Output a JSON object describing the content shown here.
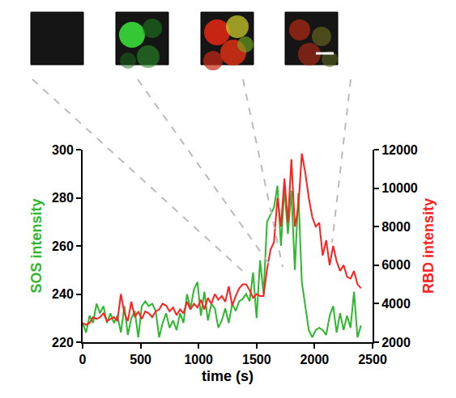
{
  "chart_data": {
    "type": "line",
    "x": [
      0,
      30,
      60,
      90,
      120,
      150,
      180,
      210,
      240,
      270,
      300,
      330,
      360,
      390,
      420,
      450,
      480,
      510,
      540,
      570,
      600,
      630,
      660,
      690,
      720,
      750,
      780,
      810,
      840,
      870,
      900,
      930,
      960,
      990,
      1020,
      1050,
      1080,
      1110,
      1140,
      1170,
      1200,
      1230,
      1260,
      1290,
      1320,
      1350,
      1380,
      1410,
      1440,
      1470,
      1500,
      1530,
      1560,
      1590,
      1620,
      1650,
      1680,
      1710,
      1740,
      1770,
      1800,
      1830,
      1860,
      1890,
      1920,
      1950,
      1980,
      2010,
      2040,
      2070,
      2100,
      2130,
      2160,
      2190,
      2220,
      2250,
      2280,
      2310,
      2340,
      2370,
      2400
    ],
    "xlabel": "time (s)",
    "xlim": [
      0,
      2500
    ],
    "xticks": [
      0,
      500,
      1000,
      1500,
      2000,
      2500
    ],
    "ylim": [
      220,
      300
    ],
    "yticks": [
      220,
      240,
      260,
      280,
      300
    ],
    "y2lim": [
      2000,
      12000
    ],
    "y2ticks": [
      2000,
      4000,
      6000,
      8000,
      10000,
      12000
    ],
    "grid": false,
    "series": [
      {
        "name": "SOS intensity",
        "color": "#2fb82f",
        "axis": "y",
        "values": [
          228,
          224,
          231,
          228,
          236,
          232,
          235,
          228,
          232,
          228,
          231,
          224,
          235,
          223,
          230,
          233,
          222,
          235,
          237,
          235,
          236,
          233,
          222,
          228,
          232,
          226,
          229,
          225,
          232,
          228,
          240,
          234,
          242,
          245,
          231,
          241,
          229,
          236,
          234,
          226,
          229,
          234,
          228,
          236,
          233,
          237,
          238,
          240,
          237,
          249,
          230,
          254,
          240,
          270,
          273,
          276,
          285,
          260,
          284,
          265,
          283,
          250,
          282,
          245,
          235,
          225,
          222,
          225,
          226,
          225,
          223,
          231,
          235,
          224,
          232,
          225,
          231,
          226,
          241,
          222,
          227
        ]
      },
      {
        "name": "RBD intensity",
        "color": "#ff2020",
        "axis": "y2",
        "values": [
          3000,
          2900,
          3000,
          3300,
          3200,
          3300,
          3500,
          3100,
          3200,
          3300,
          3100,
          4500,
          3500,
          3100,
          4100,
          3300,
          3600,
          3200,
          3600,
          3500,
          3300,
          3600,
          3700,
          4000,
          3900,
          3600,
          3800,
          3400,
          3700,
          3500,
          4100,
          3700,
          4000,
          3800,
          4200,
          3700,
          4300,
          4000,
          4500,
          4200,
          4400,
          4100,
          4900,
          3900,
          4400,
          4800,
          5000,
          5000,
          4700,
          4300,
          4500,
          4400,
          4400,
          5800,
          6800,
          7200,
          9500,
          8000,
          10500,
          8200,
          11500,
          8000,
          9000,
          11800,
          10800,
          9500,
          8500,
          8000,
          8200,
          6500,
          7300,
          6000,
          7000,
          6200,
          5700,
          6000,
          5400,
          5300,
          5700,
          5000,
          4800
        ]
      }
    ]
  }
}
